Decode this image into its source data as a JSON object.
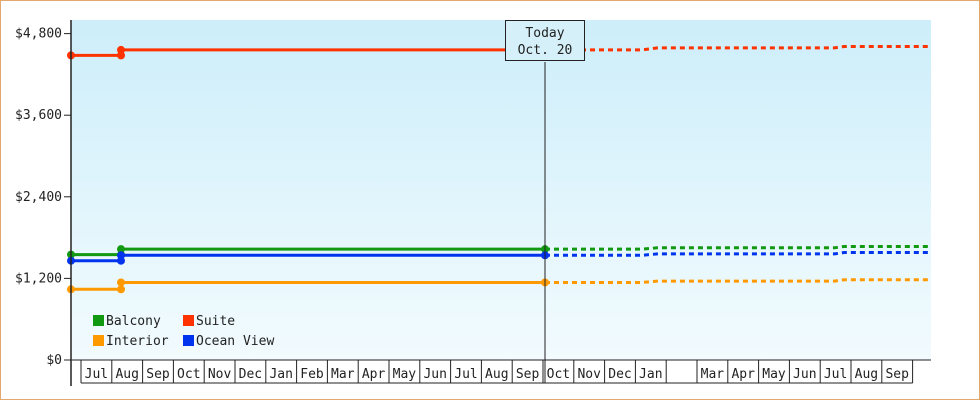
{
  "chart_data": {
    "type": "line",
    "y_ticks": [
      {
        "value": 0,
        "label": "$0"
      },
      {
        "value": 1200,
        "label": "$1,200"
      },
      {
        "value": 2400,
        "label": "$2,400"
      },
      {
        "value": 3600,
        "label": "$3,600"
      },
      {
        "value": 4800,
        "label": "$4,800"
      }
    ],
    "ylim": [
      0,
      5000
    ],
    "months": [
      "Jul",
      "Aug",
      "Sep",
      "Oct",
      "Nov",
      "Dec",
      "Jan",
      "Feb",
      "Mar",
      "Apr",
      "May",
      "Jun",
      "Jul",
      "Aug",
      "Sep",
      "Oct",
      "Nov",
      "Dec",
      "Jan",
      "",
      "Mar",
      "Apr",
      "May",
      "Jun",
      "Jul",
      "Aug",
      "Sep"
    ],
    "today": {
      "line1": "Today",
      "line2": "Oct. 20",
      "month_index": 15
    },
    "series": [
      {
        "name": "Suite",
        "color": "#ff3300",
        "actual": [
          [
            0,
            4480
          ],
          [
            1.6,
            4480
          ],
          [
            1.6,
            4560
          ],
          [
            15,
            4560
          ]
        ],
        "forecast": [
          [
            15,
            4560
          ],
          [
            18,
            4560
          ],
          [
            18.5,
            4590
          ],
          [
            24,
            4590
          ],
          [
            24.3,
            4610
          ],
          [
            27,
            4610
          ]
        ]
      },
      {
        "name": "Balcony",
        "color": "#119911",
        "actual": [
          [
            0,
            1550
          ],
          [
            1.6,
            1550
          ],
          [
            1.6,
            1630
          ],
          [
            15,
            1630
          ]
        ],
        "forecast": [
          [
            15,
            1630
          ],
          [
            18,
            1630
          ],
          [
            18.5,
            1650
          ],
          [
            24,
            1650
          ],
          [
            24.3,
            1670
          ],
          [
            27,
            1670
          ]
        ]
      },
      {
        "name": "Ocean View",
        "color": "#0033ee",
        "actual": [
          [
            0,
            1460
          ],
          [
            1.6,
            1460
          ],
          [
            1.6,
            1540
          ],
          [
            15,
            1540
          ]
        ],
        "forecast": [
          [
            15,
            1540
          ],
          [
            18,
            1540
          ],
          [
            18.5,
            1560
          ],
          [
            24,
            1560
          ],
          [
            24.3,
            1580
          ],
          [
            27,
            1580
          ]
        ]
      },
      {
        "name": "Interior",
        "color": "#ff9900",
        "actual": [
          [
            0,
            1040
          ],
          [
            1.6,
            1040
          ],
          [
            1.6,
            1140
          ],
          [
            15,
            1140
          ]
        ],
        "forecast": [
          [
            15,
            1140
          ],
          [
            18,
            1140
          ],
          [
            18.5,
            1160
          ],
          [
            24,
            1160
          ],
          [
            24.3,
            1180
          ],
          [
            27,
            1180
          ]
        ]
      }
    ],
    "legend": [
      {
        "name": "Balcony",
        "color": "#119911"
      },
      {
        "name": "Suite",
        "color": "#ff3300"
      },
      {
        "name": "Interior",
        "color": "#ff9900"
      },
      {
        "name": "Ocean View",
        "color": "#0033ee"
      }
    ]
  }
}
